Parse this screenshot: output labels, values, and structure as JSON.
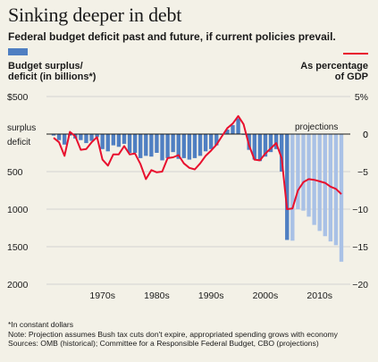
{
  "title": "Sinking deeper in debt",
  "subtitle": "Federal budget deficit past and future, if current policies prevail.",
  "footnotes": [
    "*In constant dollars",
    "Note: Projection assumes Bush tax cuts don't expire, appropriated spending grows with economy",
    "Sources: OMB (historical); Committee for a Responsible Federal Budget, CBO (projections)"
  ],
  "chart_data": {
    "type": "bar",
    "colors": {
      "bars_historical": "#4f7fc2",
      "bars_projection": "#a9c1e6",
      "line": "#e8102e",
      "zero_line": "#1a1a1a",
      "grid": "#c9c9c9"
    },
    "left_axis": {
      "label_lines": [
        "Budget surplus/",
        "deficit (in billions*)"
      ],
      "ticks": [
        "$500",
        "0",
        "500",
        "1000",
        "1500",
        "2000"
      ],
      "tick_values": [
        500,
        0,
        -500,
        -1000,
        -1500,
        -2000
      ],
      "range": [
        -2000,
        500
      ],
      "zero_labels": [
        "surplus",
        "deficit"
      ]
    },
    "right_axis": {
      "label_lines": [
        "As percentage",
        "of GDP"
      ],
      "ticks": [
        "5%",
        "0",
        "−5",
        "−10",
        "−15",
        "−20"
      ],
      "tick_values": [
        5,
        0,
        -5,
        -10,
        -15,
        -20
      ],
      "range": [
        -20,
        5
      ]
    },
    "x_ticks": [
      "1970s",
      "1980s",
      "1990s",
      "2000s",
      "2010s"
    ],
    "x_tick_years": [
      1975,
      1985,
      1995,
      2005,
      2015
    ],
    "projection_label": "projections",
    "projection_start": 2009,
    "years": [
      1966,
      1967,
      1968,
      1969,
      1970,
      1971,
      1972,
      1973,
      1974,
      1975,
      1976,
      1977,
      1978,
      1979,
      1980,
      1981,
      1982,
      1983,
      1984,
      1985,
      1986,
      1987,
      1988,
      1989,
      1990,
      1991,
      1992,
      1993,
      1994,
      1995,
      1996,
      1997,
      1998,
      1999,
      2000,
      2001,
      2002,
      2003,
      2004,
      2005,
      2006,
      2007,
      2008,
      2009,
      2010,
      2011,
      2012,
      2013,
      2014,
      2015,
      2016,
      2017,
      2018,
      2019
    ],
    "deficit_billions": [
      -20,
      -80,
      -140,
      -20,
      -60,
      -80,
      -120,
      -90,
      -40,
      -200,
      -230,
      -150,
      -170,
      -130,
      -250,
      -250,
      -320,
      -290,
      -300,
      -250,
      -350,
      -320,
      -240,
      -330,
      -320,
      -340,
      -320,
      -290,
      -230,
      -200,
      -150,
      -10,
      60,
      120,
      210,
      -10,
      -210,
      -340,
      -360,
      -300,
      -240,
      -200,
      -500,
      -1410,
      -1420,
      -1000,
      -1020,
      -1100,
      -1210,
      -1290,
      -1360,
      -1430,
      -1480,
      -1700
    ],
    "percent_gdp": [
      -0.5,
      -1.1,
      -2.9,
      0.3,
      -0.3,
      -2.1,
      -2.0,
      -1.1,
      -0.4,
      -3.4,
      -4.2,
      -2.7,
      -2.7,
      -1.6,
      -2.7,
      -2.6,
      -4.0,
      -6.0,
      -4.8,
      -5.1,
      -5.0,
      -3.2,
      -3.1,
      -2.8,
      -3.9,
      -4.5,
      -4.7,
      -3.9,
      -2.9,
      -2.2,
      -1.4,
      -0.3,
      0.8,
      1.4,
      2.4,
      1.3,
      -1.5,
      -3.4,
      -3.5,
      -2.6,
      -1.9,
      -1.2,
      -3.2,
      -10.0,
      -9.9,
      -7.5,
      -6.4,
      -6.0,
      -6.1,
      -6.3,
      -6.5,
      -7.0,
      -7.3,
      -8.0
    ]
  }
}
